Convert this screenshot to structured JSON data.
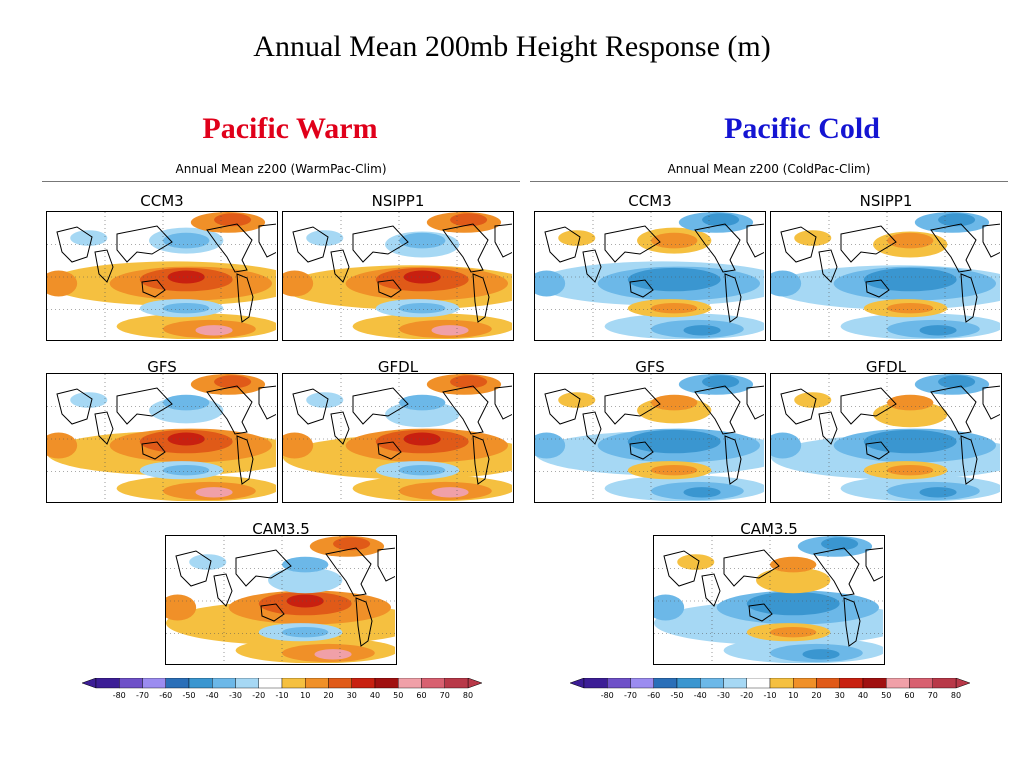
{
  "title": "Annual Mean 200mb Height Response (m)",
  "columns": [
    {
      "heading": "Pacific Warm",
      "heading_color": "#e0001a",
      "subtitle": "Annual Mean z200 (WarmPac-Clim)",
      "models": [
        "CCM3",
        "NSIPP1",
        "GFS",
        "GFDL",
        "CAM3.5"
      ],
      "sign": "warm"
    },
    {
      "heading": "Pacific  Cold",
      "heading_color": "#1414d2",
      "subtitle": "Annual Mean z200 (ColdPac-Clim)",
      "models": [
        "CCM3",
        "NSIPP1",
        "GFS",
        "GFDL",
        "CAM3.5"
      ],
      "sign": "cold"
    }
  ],
  "colorbar": {
    "labels": [
      "-80",
      "-70",
      "-60",
      "-50",
      "-40",
      "-30",
      "-20",
      "-10",
      "10",
      "20",
      "30",
      "40",
      "50",
      "60",
      "70",
      "80"
    ],
    "colors": [
      "#3c1e96",
      "#6e50c8",
      "#9b8cf0",
      "#2a6fb8",
      "#3a96d0",
      "#6cb8e8",
      "#a6d8f4",
      "#ffffff",
      "#f5c040",
      "#f09028",
      "#e05a18",
      "#c82010",
      "#a01010",
      "#f0a0a8",
      "#d86070",
      "#b83848"
    ]
  }
}
